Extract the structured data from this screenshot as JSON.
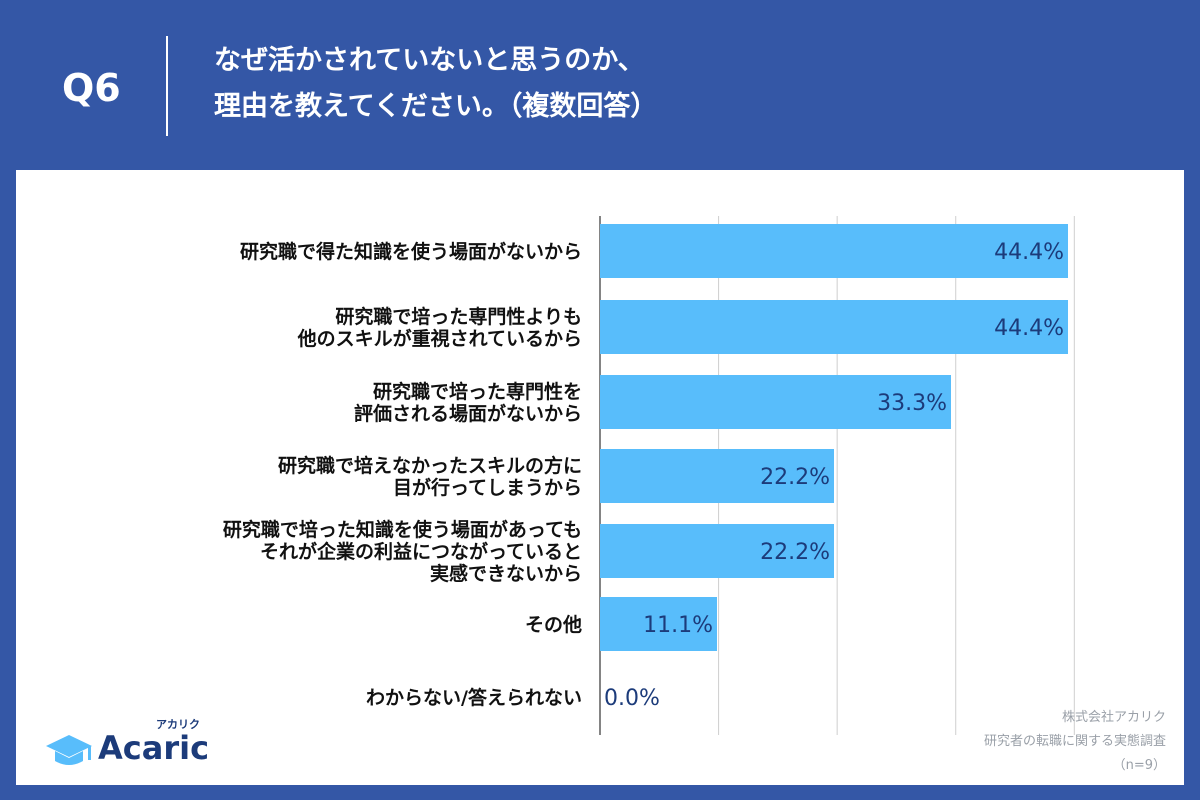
{
  "header": {
    "question_label": "Q6",
    "title_line1": "なぜ活かされていないと思うのか、",
    "title_line2": "理由を教えてください。（複数回答）"
  },
  "brand": {
    "name": "Acaric",
    "ruby": "アカリク",
    "icon": "graduation-cap-icon"
  },
  "source": {
    "company": "株式会社アカリク",
    "survey": "研究者の転職に関する実態調査",
    "sample": "（n=9）"
  },
  "colors": {
    "header_bg": "#3457a6",
    "bar": "#58bdfb",
    "value_text": "#1c3b7a"
  },
  "chart_data": {
    "type": "bar",
    "orientation": "horizontal",
    "unit": "%",
    "categories": [
      [
        "研究職で得た知識を使う場面がないから"
      ],
      [
        "研究職で培った専門性よりも",
        "他のスキルが重視されているから"
      ],
      [
        "研究職で培った専門性を",
        "評価される場面がないから"
      ],
      [
        "研究職で培えなかったスキルの方に",
        "目が行ってしまうから"
      ],
      [
        "研究職で培った知識を使う場面があっても",
        "それが企業の利益につながっていると",
        "実感できないから"
      ],
      [
        "その他"
      ],
      [
        "わからない/答えられない"
      ]
    ],
    "values": [
      44.4,
      44.4,
      33.3,
      22.2,
      22.2,
      11.1,
      0.0
    ],
    "value_labels": [
      "44.4%",
      "44.4%",
      "33.3%",
      "22.2%",
      "22.2%",
      "11.1%",
      "0.0%"
    ],
    "xlim": [
      0,
      45
    ],
    "gridlines": [
      0,
      11.25,
      22.5,
      33.75,
      45
    ],
    "grid": true
  }
}
